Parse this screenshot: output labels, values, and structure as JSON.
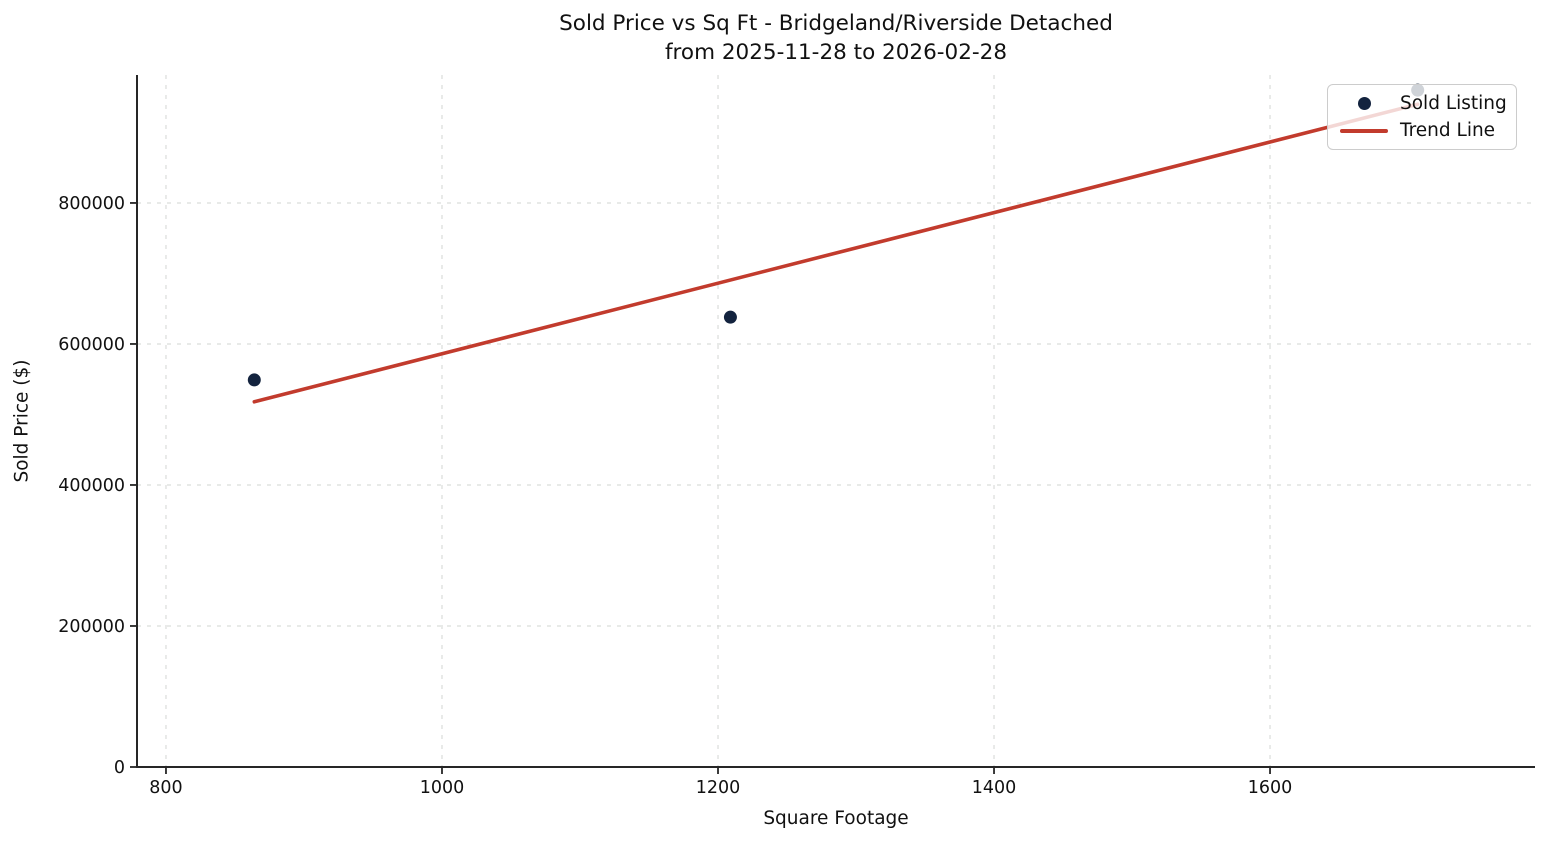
{
  "figure": {
    "title_line1": "Sold Price vs Sq Ft - Bridgeland/Riverside Detached",
    "title_line2": "from 2025-11-28 to 2026-02-28"
  },
  "chart_data": {
    "type": "scatter",
    "title": "Sold Price vs Sq Ft - Bridgeland/Riverside Detached from 2025-11-28 to 2026-02-28",
    "xlabel": "Square Footage",
    "ylabel": "Sold Price ($)",
    "xlim": [
      779,
      1792
    ],
    "ylim": [
      0,
      981500
    ],
    "xticks": [
      800,
      1000,
      1200,
      1400,
      1600
    ],
    "yticks": [
      0,
      200000,
      400000,
      600000,
      800000
    ],
    "grid": {
      "visible": true,
      "style": "dashed"
    },
    "legend": {
      "position": "upper right",
      "items": [
        {
          "label": "Sold Listing",
          "marker": "dot",
          "color": "#13233e"
        },
        {
          "label": "Trend Line",
          "marker": "line",
          "color": "#c23b2d"
        }
      ]
    },
    "series": [
      {
        "name": "Sold Listing",
        "kind": "scatter",
        "color": "#13233e",
        "points": [
          {
            "sqft": 864,
            "sold_price": 549000
          },
          {
            "sqft": 1209,
            "sold_price": 638000
          },
          {
            "sqft": 1707,
            "sold_price": 960000
          }
        ]
      },
      {
        "name": "Trend Line",
        "kind": "line",
        "color": "#c23b2d",
        "points": [
          {
            "sqft": 864,
            "sold_price": 518000
          },
          {
            "sqft": 1707,
            "sold_price": 940000
          }
        ]
      }
    ]
  },
  "colors": {
    "background": "#ffffff",
    "axis": "#262626",
    "text": "#111111",
    "grid": "#d4d7d4",
    "legend_border": "#cccccc",
    "point": "#13233e",
    "trend": "#c23b2d"
  }
}
